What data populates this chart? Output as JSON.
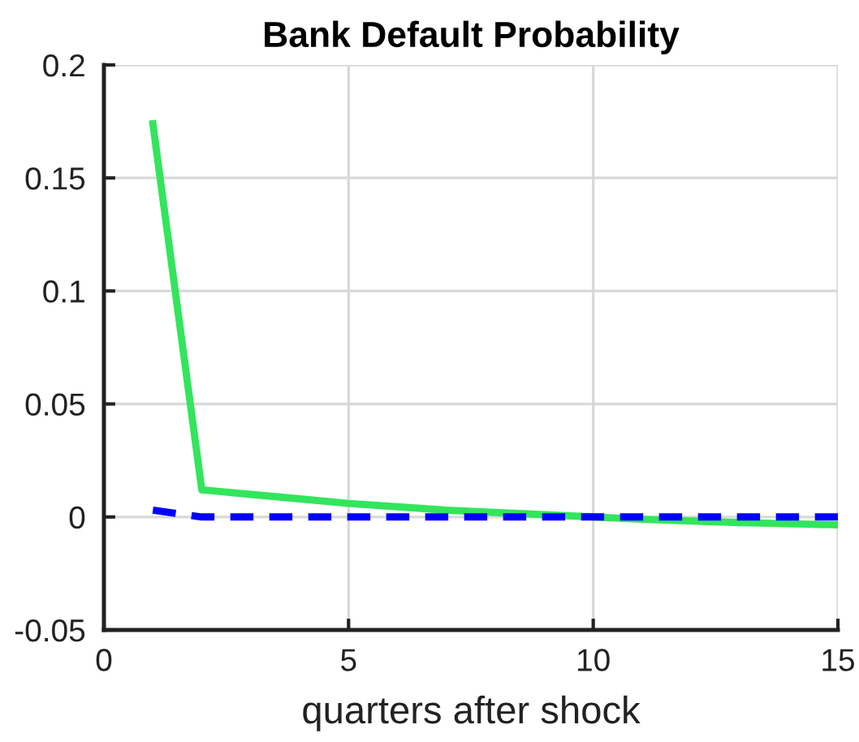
{
  "chart_data": {
    "type": "line",
    "title": "Bank Default Probability",
    "xlabel": "quarters after shock",
    "x": [
      1,
      2,
      3,
      4,
      5,
      6,
      7,
      8,
      9,
      10,
      11,
      12,
      13,
      14,
      15
    ],
    "series": [
      {
        "color": "#33e55c",
        "line_style": "solid",
        "values": [
          0.174,
          0.012,
          0.01,
          0.008,
          0.006,
          0.0045,
          0.003,
          0.002,
          0.001,
          0.0,
          -0.001,
          -0.0018,
          -0.0025,
          -0.003,
          -0.0035
        ]
      },
      {
        "color": "#0000ff",
        "line_style": "dashed",
        "values": [
          0.003,
          0.0,
          0.0,
          0.0,
          0.0,
          0.0,
          0.0,
          0.0,
          0.0,
          0.0,
          0.0,
          0.0,
          0.0,
          0.0,
          0.0
        ]
      }
    ],
    "xlim": [
      0,
      15
    ],
    "xticks": [
      0,
      5,
      10,
      15
    ],
    "ylim": [
      -0.05,
      0.2
    ],
    "yticks": [
      -0.05,
      0,
      0.05,
      0.1,
      0.15,
      0.2
    ],
    "grid": true,
    "marker": "none"
  }
}
